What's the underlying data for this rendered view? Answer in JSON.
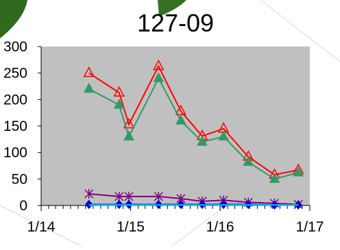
{
  "chart_data": {
    "type": "line",
    "title": "127-09",
    "xlabel": "",
    "ylabel": "",
    "ylim": [
      0,
      300
    ],
    "yticks": [
      "0",
      "50",
      "100",
      "150",
      "200",
      "250",
      "300"
    ],
    "xlim": [
      "2014-01-01",
      "2017-01-01"
    ],
    "xticks": [
      {
        "date": "2014-01-01",
        "label": "1/14"
      },
      {
        "date": "2015-01-01",
        "label": "1/15"
      },
      {
        "date": "2016-01-01",
        "label": "1/16"
      },
      {
        "date": "2017-01-01",
        "label": "1/17"
      }
    ],
    "grid": false,
    "legend": "none",
    "x": [
      "2014-07-15",
      "2014-11-15",
      "2014-12-25",
      "2015-04-25",
      "2015-07-25",
      "2015-10-20",
      "2016-01-15",
      "2016-04-25",
      "2016-08-10",
      "2016-11-15"
    ],
    "series": [
      {
        "values": [
          250,
          213,
          153,
          263,
          178,
          131,
          145,
          92,
          58,
          67
        ],
        "color": "#ff0000",
        "marker": "triangle-open"
      },
      {
        "values": [
          220,
          190,
          130,
          240,
          160,
          120,
          130,
          82,
          50,
          62
        ],
        "color": "#339966",
        "marker": "triangle-filled"
      },
      {
        "values": [
          22,
          17,
          17,
          17,
          13,
          8,
          10,
          6,
          4,
          2
        ],
        "color": "#800080",
        "marker": "asterisk"
      },
      {
        "values": [
          2,
          2,
          2,
          2,
          2,
          2,
          2,
          2,
          1,
          1
        ],
        "color": "#0000cc",
        "marker": "diamond"
      },
      {
        "values": [
          1,
          1,
          1,
          1,
          1,
          1,
          1,
          1,
          1,
          1
        ],
        "color": "#00ccff",
        "marker": "none"
      }
    ]
  }
}
